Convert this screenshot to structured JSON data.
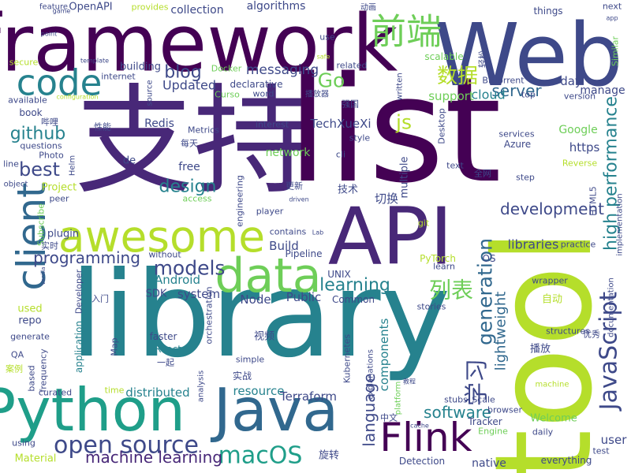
{
  "words": [
    "支持",
    "list",
    "library",
    "framework",
    "Web",
    "tool",
    "API",
    "Python",
    "Java",
    "awesome",
    "data",
    "code",
    "client",
    "Flink",
    "前端",
    "open source",
    "macOS",
    "machine learning",
    "JavaScript",
    "high performance",
    "development",
    "generation",
    "学习",
    "列表",
    "数据",
    "models",
    "blog",
    "Go",
    "js",
    "best",
    "github",
    "design",
    "programming",
    "learning",
    "language",
    "software",
    "server",
    "cloud",
    "messaging",
    "lightweight",
    "libraries",
    "system",
    "Updated",
    "Android",
    "resource",
    "distributed",
    "components",
    "Terraform",
    "Node",
    "Public",
    "Build",
    "TechXueXi",
    "support",
    "day",
    "manage",
    "https",
    "Google",
    "Redis",
    "free",
    "network",
    "native",
    "user",
    "Welcome",
    "Material",
    "used",
    "repo",
    "collection",
    "algorithms",
    "OpenAPI",
    "building",
    "plugin",
    "Project",
    "questions",
    "book",
    "SDK",
    "React",
    "faster",
    "切换",
    "技术",
    "旋转",
    "自动",
    "播放",
    "视频",
    "实战",
    "Detection",
    "Tracker",
    "Azure",
    "OS",
    "PyTorch",
    "Pipeline",
    "UNIX",
    "Common",
    "everything",
    "things",
    "next",
    "feature",
    "provides",
    "use",
    "related",
    "secure",
    "available",
    "internet",
    "interest",
    "style",
    "de",
    "Metrics",
    "每天",
    "Docker",
    "word",
    "declarative",
    "Curso",
    "engineering",
    "更新",
    "player",
    "access",
    "contains",
    "Subscribe",
    "Photo",
    "object",
    "line",
    "peer",
    "QA",
    "generate",
    "案例",
    "curated",
    "based",
    "frequency",
    "application",
    "Developer",
    "Map",
    "time",
    "一起",
    "analysis",
    "orchestration",
    "simple",
    "stubs",
    "Scale",
    "browser",
    "daily",
    "machine",
    "Engine",
    "test",
    "中文",
    "cache",
    "using",
    "documentation",
    "structures",
    "优秀",
    "wrapper",
    "practice",
    "step",
    "Reverse",
    "全网",
    "services",
    "top",
    "version",
    "text",
    "Desktop",
    "multiple",
    "written",
    "scalable",
    "BitTorrent",
    "轻松",
    "动画",
    "cli",
    "implementation",
    "HTML5",
    "Similar",
    "git",
    "learn",
    "stories",
    "explanations",
    "platform",
    "Kubernetes",
    "入门",
    "without",
    "实时",
    "哔哩",
    "性能",
    "source",
    "强国",
    "播放器",
    "Helm",
    "template",
    "configuration",
    "point",
    "game",
    "safe",
    "driven",
    "Lab",
    "Vanilla",
    "教程",
    "app"
  ]
}
